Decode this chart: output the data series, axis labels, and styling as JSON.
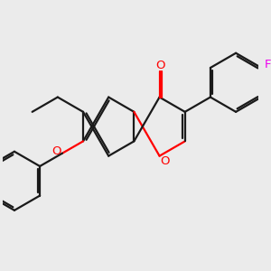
{
  "bg_color": "#ebebeb",
  "bond_color": "#1a1a1a",
  "o_color": "#ff0000",
  "f_color": "#ee00ee",
  "lw": 1.6,
  "figsize": [
    3.0,
    3.0
  ],
  "dpi": 100,
  "xlim": [
    0,
    10
  ],
  "ylim": [
    0,
    10
  ]
}
